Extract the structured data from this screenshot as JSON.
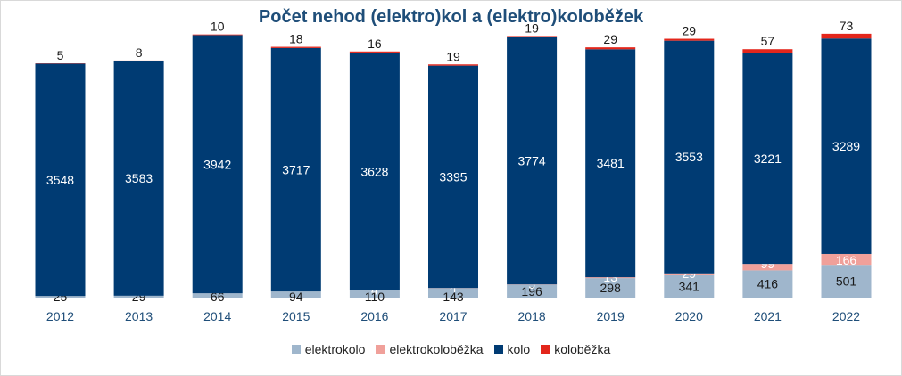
{
  "chart_data": {
    "type": "bar",
    "stacked": true,
    "title": "Počet nehod (elektro)kol a (elektro)koloběžek",
    "xlabel": "",
    "ylabel": "",
    "ylim": [
      0,
      4000
    ],
    "grid": false,
    "legend_position": "bottom",
    "categories": [
      "2012",
      "2013",
      "2014",
      "2015",
      "2016",
      "2017",
      "2018",
      "2019",
      "2020",
      "2021",
      "2022"
    ],
    "series": [
      {
        "name": "elektrokolo",
        "color": "#9fb6cc",
        "labelColor": "#1a1a1a",
        "values": [
          25,
          29,
          66,
          94,
          110,
          143,
          196,
          298,
          341,
          416,
          501
        ]
      },
      {
        "name": "elektrokoloběžka",
        "color": "#f0a09a",
        "labelColor": "#ffffff",
        "values": [
          0,
          0,
          0,
          0,
          4,
          4,
          5,
          13,
          29,
          99,
          166
        ]
      },
      {
        "name": "kolo",
        "color": "#003b73",
        "labelColor": "#ffffff",
        "values": [
          3548,
          3583,
          3942,
          3717,
          3628,
          3395,
          3774,
          3481,
          3553,
          3221,
          3289
        ]
      },
      {
        "name": "koloběžka",
        "color": "#e3261b",
        "labelColor": "#1a1a1a",
        "values": [
          5,
          8,
          10,
          18,
          16,
          19,
          19,
          29,
          29,
          57,
          73
        ]
      }
    ]
  }
}
